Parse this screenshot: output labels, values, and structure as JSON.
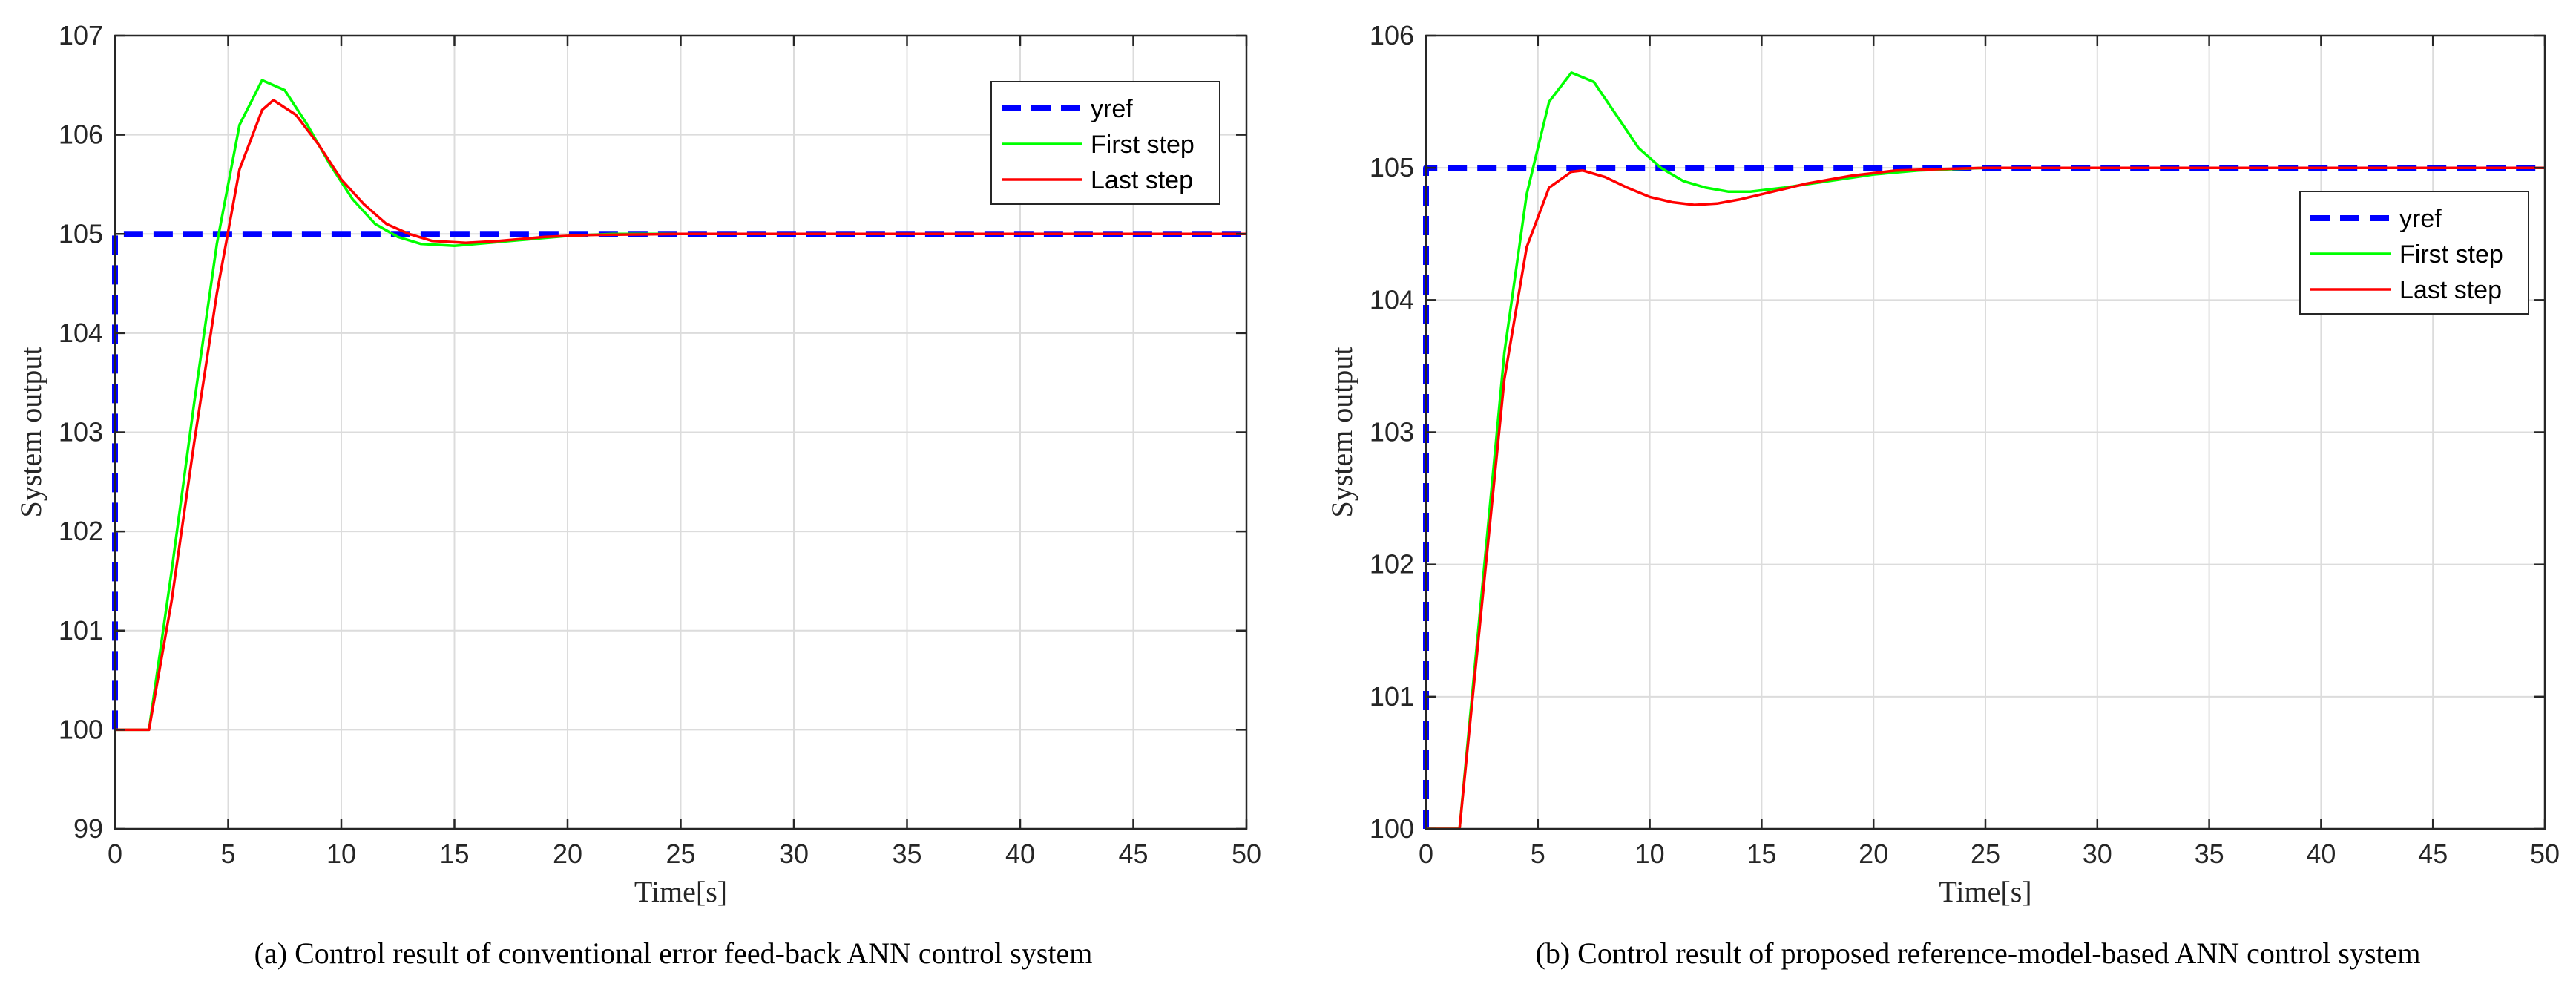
{
  "chart_data": [
    {
      "type": "line",
      "caption": "(a) Control result of conventional error feed-back ANN control system",
      "xlabel": "Time[s]",
      "ylabel": "System output",
      "xlim": [
        0,
        50
      ],
      "ylim": [
        99,
        107
      ],
      "xticks": [
        0,
        5,
        10,
        15,
        20,
        25,
        30,
        35,
        40,
        45,
        50
      ],
      "yticks": [
        99,
        100,
        101,
        102,
        103,
        104,
        105,
        106,
        107
      ],
      "grid": true,
      "legend_position": "top-right",
      "series": [
        {
          "name": "yref",
          "color": "#0000ff",
          "style": "dashed",
          "x": [
            0,
            0,
            50
          ],
          "y": [
            100,
            105,
            105
          ]
        },
        {
          "name": "First step",
          "color": "#00ff00",
          "style": "solid",
          "x": [
            0,
            1.5,
            2.5,
            3.5,
            4.5,
            5.5,
            6.5,
            7.5,
            8.5,
            9.5,
            10.5,
            11.5,
            12.5,
            13.5,
            15,
            16,
            17.5,
            20,
            22,
            25,
            30,
            40,
            50
          ],
          "y": [
            100,
            100,
            101.6,
            103.3,
            104.9,
            106.1,
            106.55,
            106.45,
            106.1,
            105.7,
            105.35,
            105.1,
            104.97,
            104.9,
            104.88,
            104.9,
            104.93,
            104.98,
            105.0,
            105.0,
            105.0,
            105.0,
            105.0
          ]
        },
        {
          "name": "Last step",
          "color": "#ff0000",
          "style": "solid",
          "x": [
            0,
            1.5,
            2.5,
            3.5,
            4.5,
            5.5,
            6.5,
            7.0,
            8.0,
            9.0,
            10.0,
            11.0,
            12.0,
            13.0,
            14.0,
            15.5,
            17,
            19,
            21,
            25,
            30,
            40,
            50
          ],
          "y": [
            100,
            100,
            101.3,
            102.9,
            104.4,
            105.65,
            106.25,
            106.35,
            106.2,
            105.9,
            105.55,
            105.3,
            105.1,
            105.0,
            104.93,
            104.91,
            104.93,
            104.97,
            104.99,
            105.0,
            105.0,
            105.0,
            105.0
          ]
        }
      ]
    },
    {
      "type": "line",
      "caption": "(b) Control result of proposed reference-model-based ANN control system",
      "xlabel": "Time[s]",
      "ylabel": "System output",
      "xlim": [
        0,
        50
      ],
      "ylim": [
        100,
        106
      ],
      "xticks": [
        0,
        5,
        10,
        15,
        20,
        25,
        30,
        35,
        40,
        45,
        50
      ],
      "yticks": [
        100,
        101,
        102,
        103,
        104,
        105,
        106
      ],
      "grid": true,
      "legend_position": "right",
      "series": [
        {
          "name": "yref",
          "color": "#0000ff",
          "style": "dashed",
          "x": [
            0,
            0,
            50
          ],
          "y": [
            100,
            105,
            105
          ]
        },
        {
          "name": "First step",
          "color": "#00ff00",
          "style": "solid",
          "x": [
            0,
            1.5,
            2.5,
            3.5,
            4.5,
            5.5,
            6.5,
            7.5,
            8.5,
            9.5,
            10.5,
            11.5,
            12.5,
            13.5,
            14.5,
            16,
            18,
            20,
            22,
            25,
            30,
            40,
            50
          ],
          "y": [
            100,
            100,
            101.8,
            103.6,
            104.8,
            105.5,
            105.72,
            105.65,
            105.4,
            105.15,
            105.0,
            104.9,
            104.85,
            104.82,
            104.82,
            104.85,
            104.9,
            104.95,
            104.98,
            105.0,
            105.0,
            105.0,
            105.0
          ]
        },
        {
          "name": "Last step",
          "color": "#ff0000",
          "style": "solid",
          "x": [
            0,
            1.5,
            2.5,
            3.5,
            4.5,
            5.5,
            6.5,
            7.0,
            8.0,
            9.0,
            10.0,
            11.0,
            12.0,
            13.0,
            14.0,
            15.5,
            17,
            19,
            21,
            23,
            25,
            30,
            40,
            50
          ],
          "y": [
            100,
            100,
            101.7,
            103.4,
            104.4,
            104.85,
            104.97,
            104.98,
            104.93,
            104.85,
            104.78,
            104.74,
            104.72,
            104.73,
            104.76,
            104.82,
            104.88,
            104.94,
            104.98,
            104.99,
            105.0,
            105.0,
            105.0,
            105.0
          ]
        }
      ]
    }
  ]
}
